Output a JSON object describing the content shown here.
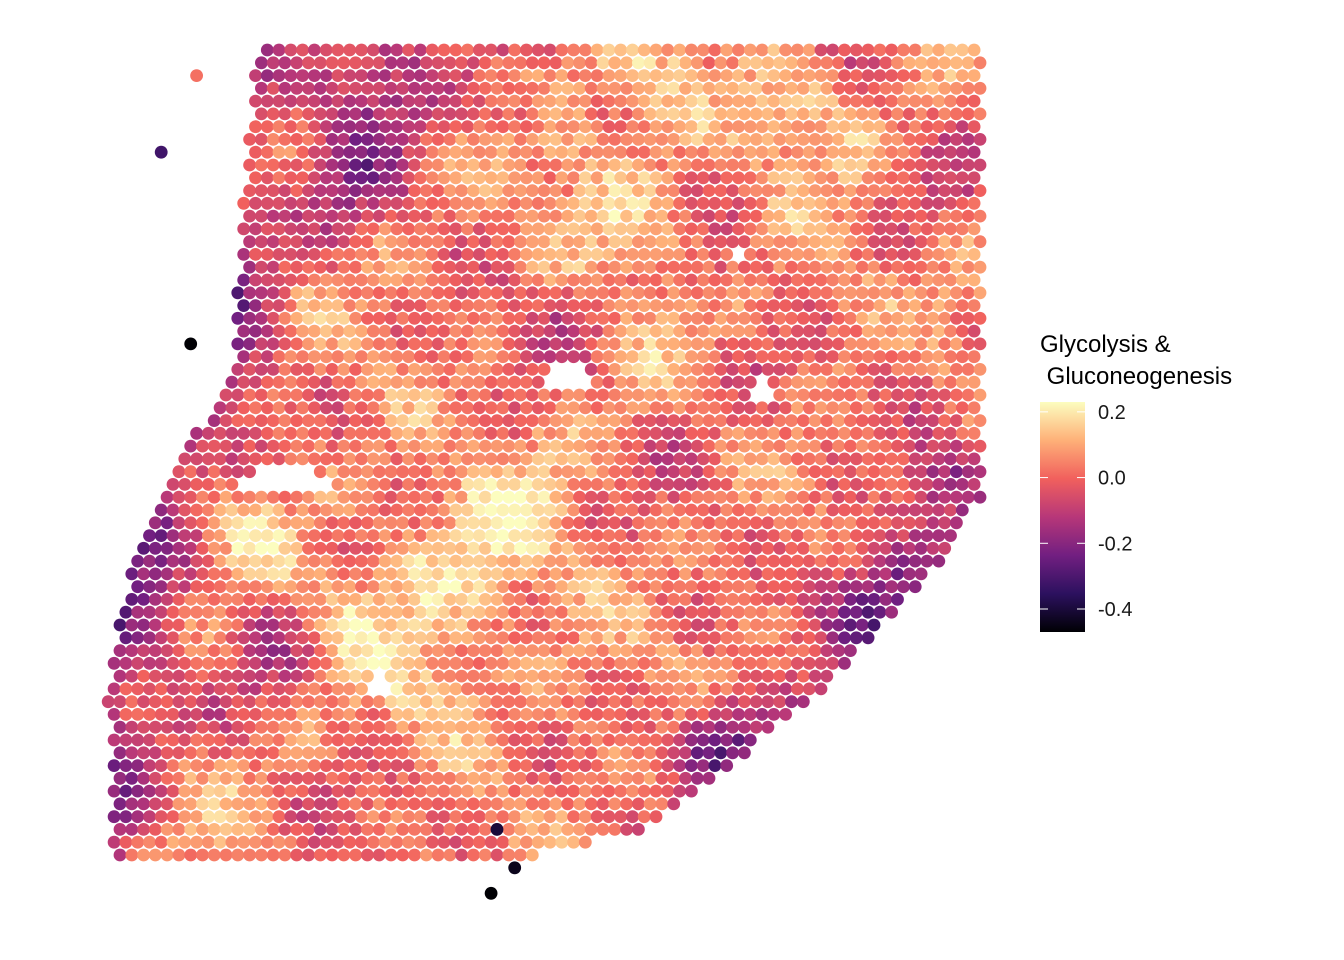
{
  "chart_data": {
    "type": "scatter",
    "title": "",
    "xlabel": "",
    "ylabel": "",
    "grid": false,
    "axes_visible": false,
    "legend": {
      "title_lines": [
        "Glycolysis &",
        " Gluconeogenesis"
      ],
      "placement": "right",
      "ticks": [
        {
          "value": 0.2,
          "label": "0.2"
        },
        {
          "value": 0.0,
          "label": "0.0"
        },
        {
          "value": -0.2,
          "label": "-0.2"
        },
        {
          "value": -0.4,
          "label": "-0.4"
        }
      ],
      "range": [
        -0.47,
        0.23
      ]
    },
    "color_scale": {
      "name": "magma",
      "stops": [
        "#000004",
        "#2c115f",
        "#721f81",
        "#b73779",
        "#f1605d",
        "#feb078",
        "#fcfdbf"
      ]
    },
    "spatial_grid": {
      "cols": 74,
      "rows": 64,
      "x_extent": [
        0,
        73
      ],
      "y_extent": [
        0,
        63
      ]
    },
    "outliers": [
      {
        "x": 6,
        "y": 61,
        "value": 0.02
      },
      {
        "x": 3,
        "y": 55,
        "value": -0.32
      },
      {
        "x": 6,
        "y": 40,
        "value": -0.47
      },
      {
        "x": 31,
        "y": -3,
        "value": -0.47
      },
      {
        "x": 33,
        "y": -1,
        "value": -0.44
      },
      {
        "x": 35,
        "y": 4,
        "value": 0.02
      },
      {
        "x": 32,
        "y": 2,
        "value": -0.4
      },
      {
        "x": 47,
        "y": 62,
        "value": 0.18
      }
    ]
  }
}
